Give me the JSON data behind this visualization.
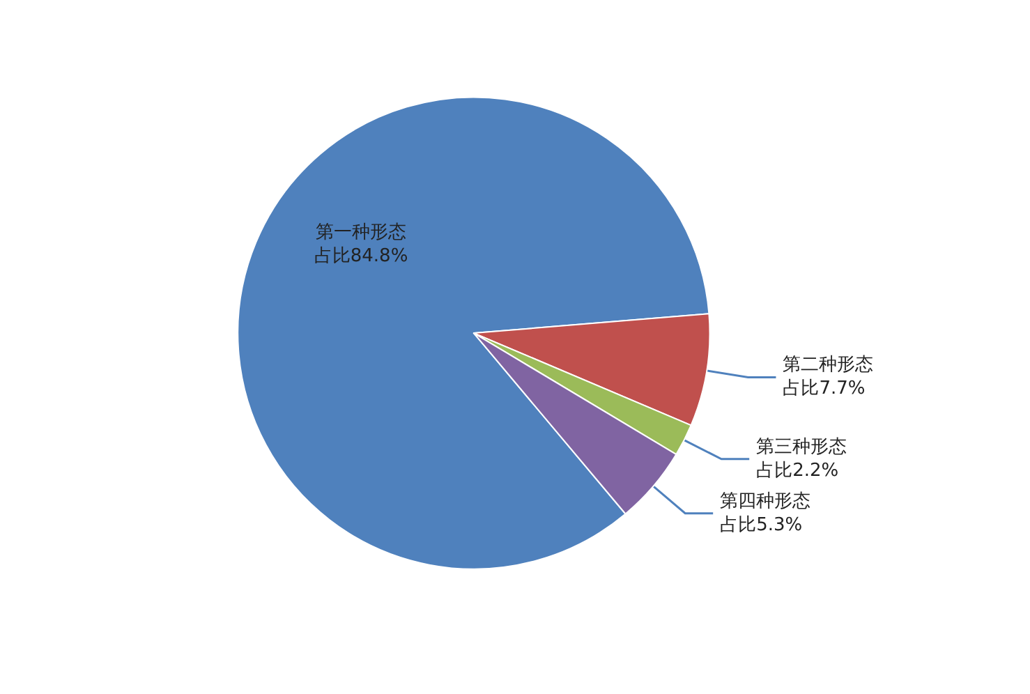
{
  "chart_data": {
    "type": "pie",
    "categories": [
      "第一种形态",
      "第二种形态",
      "第三种形态",
      "第四种形态"
    ],
    "values": [
      84.8,
      7.7,
      2.2,
      5.3
    ],
    "colors": [
      "#4f81bd",
      "#c0504d",
      "#9bbb59",
      "#8064a2"
    ],
    "value_labels": [
      "占比84.8%",
      "占比7.7%",
      "占比2.2%",
      "占比5.3%"
    ]
  }
}
